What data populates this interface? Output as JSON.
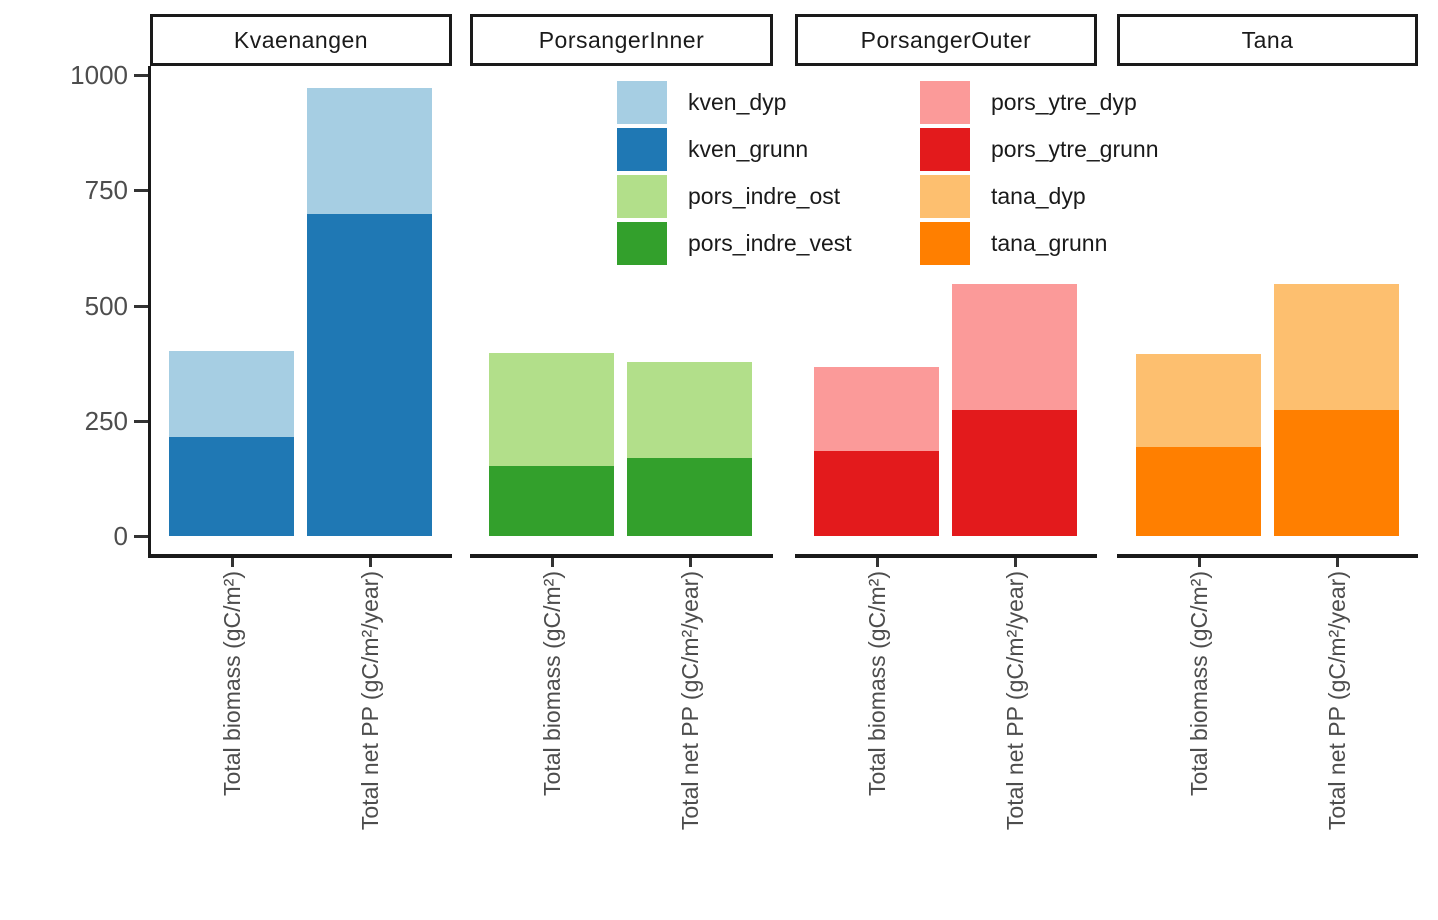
{
  "chart_data": {
    "type": "bar",
    "stacked": true,
    "grid": false,
    "background": "#ffffff",
    "x_categories": [
      "Total biomass (gC/m²)",
      "Total net PP (gC/m²/year)"
    ],
    "y_axis": {
      "ticks": [
        0,
        250,
        500,
        750,
        1000
      ],
      "lim": [
        0,
        1000
      ]
    },
    "legend": {
      "position": "inside-top-center",
      "columns": 2,
      "entries": [
        {
          "name": "kven_dyp",
          "color": "#a6cee3"
        },
        {
          "name": "kven_grunn",
          "color": "#1f78b4"
        },
        {
          "name": "pors_indre_ost",
          "color": "#b2df8a"
        },
        {
          "name": "pors_indre_vest",
          "color": "#33a02c"
        },
        {
          "name": "pors_ytre_dyp",
          "color": "#fb9a99"
        },
        {
          "name": "pors_ytre_grunn",
          "color": "#e31a1c"
        },
        {
          "name": "tana_dyp",
          "color": "#fdbf6f"
        },
        {
          "name": "tana_grunn",
          "color": "#ff7f00"
        }
      ]
    },
    "facets": [
      {
        "label": "Kvaenangen",
        "bars": [
          {
            "category": "Total biomass (gC/m²)",
            "stack": [
              {
                "series": "kven_grunn",
                "value": 215
              },
              {
                "series": "kven_dyp",
                "value": 186
              }
            ],
            "total": 401
          },
          {
            "category": "Total net PP (gC/m²/year)",
            "stack": [
              {
                "series": "kven_grunn",
                "value": 698
              },
              {
                "series": "kven_dyp",
                "value": 273
              }
            ],
            "total": 971
          }
        ]
      },
      {
        "label": "PorsangerInner",
        "bars": [
          {
            "category": "Total biomass (gC/m²)",
            "stack": [
              {
                "series": "pors_indre_vest",
                "value": 152
              },
              {
                "series": "pors_indre_ost",
                "value": 245
              }
            ],
            "total": 397
          },
          {
            "category": "Total net PP (gC/m²/year)",
            "stack": [
              {
                "series": "pors_indre_vest",
                "value": 169
              },
              {
                "series": "pors_indre_ost",
                "value": 208
              }
            ],
            "total": 377
          }
        ]
      },
      {
        "label": "PorsangerOuter",
        "bars": [
          {
            "category": "Total biomass (gC/m²)",
            "stack": [
              {
                "series": "pors_ytre_grunn",
                "value": 184
              },
              {
                "series": "pors_ytre_dyp",
                "value": 183
              }
            ],
            "total": 367
          },
          {
            "category": "Total net PP (gC/m²/year)",
            "stack": [
              {
                "series": "pors_ytre_grunn",
                "value": 273
              },
              {
                "series": "pors_ytre_dyp",
                "value": 274
              }
            ],
            "total": 547
          }
        ]
      },
      {
        "label": "Tana",
        "bars": [
          {
            "category": "Total biomass (gC/m²)",
            "stack": [
              {
                "series": "tana_grunn",
                "value": 193
              },
              {
                "series": "tana_dyp",
                "value": 202
              }
            ],
            "total": 395
          },
          {
            "category": "Total net PP (gC/m²/year)",
            "stack": [
              {
                "series": "tana_grunn",
                "value": 273
              },
              {
                "series": "tana_dyp",
                "value": 274
              }
            ],
            "total": 547
          }
        ]
      }
    ],
    "theme": {
      "axis_text_color": "#4d4d4d",
      "axis_line_color": "#1a1a1a",
      "strip_border_color": "#1a1a1a",
      "strip_background": "#ffffff"
    }
  }
}
